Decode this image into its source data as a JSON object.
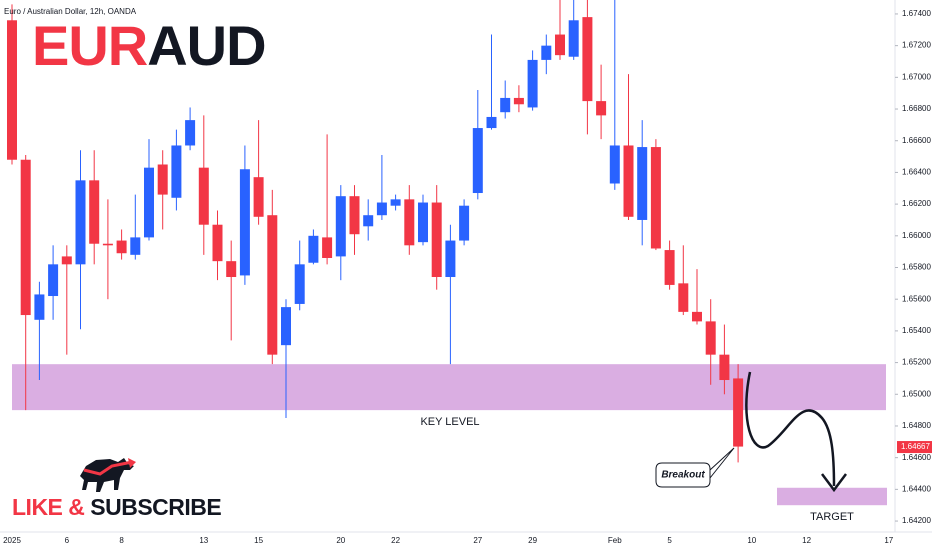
{
  "chart_data": {
    "type": "candlestick",
    "header": "Euro / Australian Dollar, 12h, OANDA",
    "title_parts": [
      "EUR",
      "AUD"
    ],
    "branding": [
      "LIKE &",
      "SUBSCRIBE"
    ],
    "up_color": "#2962ff",
    "down_color": "#f23645",
    "grid": false,
    "categories": [
      "2025",
      null,
      null,
      null,
      "6",
      null,
      null,
      null,
      "8",
      null,
      null,
      null,
      null,
      null,
      "13",
      null,
      null,
      null,
      "15",
      null,
      null,
      null,
      null,
      null,
      "20",
      null,
      null,
      null,
      "22",
      null,
      null,
      null,
      null,
      null,
      "27",
      null,
      null,
      null,
      "29",
      null,
      null,
      null,
      null,
      null,
      "Feb",
      null,
      null,
      null,
      "5",
      null,
      null,
      null,
      null,
      null,
      "10",
      null,
      null,
      null,
      "12",
      null,
      null,
      null,
      null,
      null,
      "17"
    ],
    "open": [
      1.6736,
      1.6648,
      1.6547,
      1.6562,
      1.6587,
      1.6582,
      1.6635,
      1.6595,
      1.6597,
      1.6588,
      1.6599,
      1.6645,
      1.6624,
      1.6657,
      1.6643,
      1.6607,
      1.6584,
      1.6575,
      1.6637,
      1.6613,
      1.6531,
      1.6557,
      1.6583,
      1.6599,
      1.6587,
      1.6625,
      1.6606,
      1.6613,
      1.6619,
      1.6623,
      1.6596,
      1.6621,
      1.6574,
      1.6597,
      1.6627,
      1.6668,
      1.6678,
      1.6687,
      1.6681,
      1.6711,
      1.6727,
      1.6713,
      1.6738,
      1.6685,
      1.6633,
      1.6657,
      1.661,
      1.6656,
      1.6591,
      1.657,
      1.6552,
      1.6546,
      1.6525,
      1.651,
      null,
      null,
      null,
      null,
      null,
      null,
      null,
      null,
      null,
      null,
      null
    ],
    "high": [
      1.6746,
      1.6651,
      1.6571,
      1.6594,
      1.6594,
      1.6654,
      1.6654,
      1.6623,
      1.6604,
      1.6626,
      1.6661,
      1.6654,
      1.6667,
      1.6681,
      1.6676,
      1.6616,
      1.6597,
      1.6657,
      1.6673,
      1.6629,
      1.656,
      1.6597,
      1.6604,
      1.6664,
      1.6632,
      1.6632,
      1.6623,
      1.6651,
      1.6626,
      1.6632,
      1.6626,
      1.6632,
      1.6607,
      1.6623,
      1.6692,
      1.6727,
      1.6698,
      1.6695,
      1.6717,
      1.6727,
      1.6749,
      1.6749,
      1.6749,
      1.6708,
      1.6749,
      1.6702,
      1.6673,
      1.6661,
      1.6597,
      1.6594,
      1.6579,
      1.656,
      1.6544,
      1.6519,
      null,
      null,
      null,
      null,
      null,
      null,
      null,
      null,
      null,
      null,
      null
    ],
    "low": [
      1.6645,
      1.649,
      1.6509,
      1.6547,
      1.6525,
      1.6541,
      1.6582,
      1.656,
      1.6585,
      1.6585,
      1.6597,
      1.6604,
      1.6616,
      1.6654,
      1.6588,
      1.6572,
      1.6534,
      1.6569,
      1.6607,
      1.6519,
      1.6485,
      1.6553,
      1.6582,
      1.6582,
      1.6572,
      1.6588,
      1.6597,
      1.661,
      1.6616,
      1.6588,
      1.6594,
      1.6566,
      1.6519,
      1.6594,
      1.6623,
      1.6667,
      1.6674,
      1.6678,
      1.6679,
      1.6702,
      1.6711,
      1.6711,
      1.6664,
      1.6661,
      1.6629,
      1.661,
      1.6594,
      1.6591,
      1.6566,
      1.655,
      1.6544,
      1.6506,
      1.65,
      1.6457,
      null,
      null,
      null,
      null,
      null,
      null,
      null,
      null,
      null,
      null,
      null
    ],
    "close": [
      1.6648,
      1.655,
      1.6563,
      1.6582,
      1.6582,
      1.6635,
      1.6595,
      1.6594,
      1.6589,
      1.6599,
      1.6643,
      1.6626,
      1.6657,
      1.6673,
      1.6607,
      1.6584,
      1.6574,
      1.6642,
      1.6612,
      1.6525,
      1.6555,
      1.6582,
      1.66,
      1.6586,
      1.6625,
      1.6601,
      1.6613,
      1.6621,
      1.6623,
      1.6594,
      1.6621,
      1.6574,
      1.6597,
      1.6619,
      1.6668,
      1.6675,
      1.6687,
      1.6683,
      1.6711,
      1.672,
      1.6714,
      1.6736,
      1.6685,
      1.6676,
      1.6657,
      1.6612,
      1.6656,
      1.6592,
      1.6569,
      1.6552,
      1.6546,
      1.6525,
      1.6509,
      1.6467,
      null,
      null,
      null,
      null,
      null,
      null,
      null,
      null,
      null,
      null,
      null
    ],
    "last_price": {
      "value": 1.64667,
      "label": "1.64667"
    },
    "zones": [
      {
        "label": "KEY LEVEL",
        "low": 1.649,
        "high": 1.6519
      },
      {
        "label": "TARGET",
        "low": 1.643,
        "high": 1.6441
      }
    ],
    "annotation": "Breakout",
    "ylim": [
      1.64112,
      1.67488
    ],
    "yticks": [
      {
        "value": 1.642,
        "label": "1.64200"
      },
      {
        "value": 1.644,
        "label": "1.64400"
      },
      {
        "value": 1.646,
        "label": "1.64600"
      },
      {
        "value": 1.648,
        "label": "1.64800"
      },
      {
        "value": 1.65,
        "label": "1.65000"
      },
      {
        "value": 1.652,
        "label": "1.65200"
      },
      {
        "value": 1.654,
        "label": "1.65400"
      },
      {
        "value": 1.656,
        "label": "1.65600"
      },
      {
        "value": 1.658,
        "label": "1.65800"
      },
      {
        "value": 1.66,
        "label": "1.66000"
      },
      {
        "value": 1.662,
        "label": "1.66200"
      },
      {
        "value": 1.664,
        "label": "1.66400"
      },
      {
        "value": 1.666,
        "label": "1.66600"
      },
      {
        "value": 1.668,
        "label": "1.66800"
      },
      {
        "value": 1.67,
        "label": "1.67000"
      },
      {
        "value": 1.672,
        "label": "1.67200"
      },
      {
        "value": 1.674,
        "label": "1.67400"
      }
    ]
  }
}
